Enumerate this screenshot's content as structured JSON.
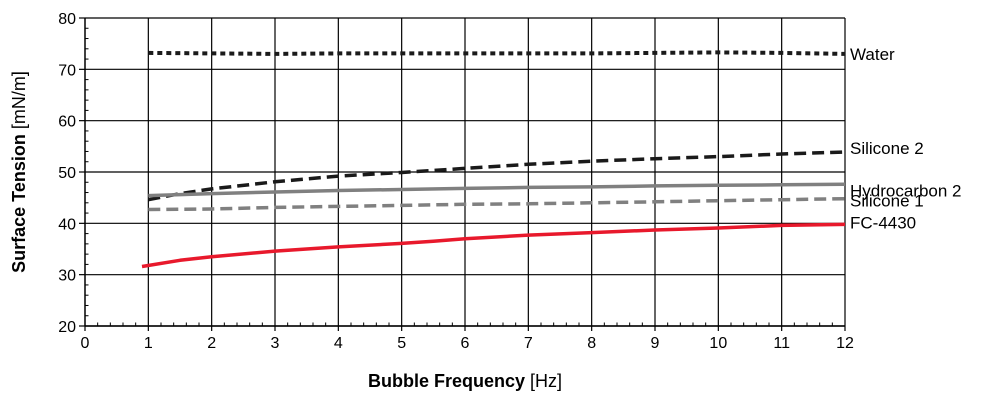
{
  "chart_data": {
    "type": "line",
    "xlabel_bold": "Bubble Frequency",
    "xlabel_unit": "[Hz]",
    "ylabel_bold": "Surface Tension",
    "ylabel_unit": "[mN/m]",
    "xlim": [
      0,
      12
    ],
    "ylim": [
      20,
      80
    ],
    "xticks": [
      0,
      1,
      2,
      3,
      4,
      5,
      6,
      7,
      8,
      9,
      10,
      11,
      12
    ],
    "yticks": [
      20,
      30,
      40,
      50,
      60,
      70,
      80
    ],
    "grid": true,
    "legend": "labels at right end of each line",
    "series": [
      {
        "name": "Water",
        "color": "#1a1a1a",
        "style": "dotted",
        "x": [
          1,
          2,
          3,
          4,
          5,
          6,
          7,
          8,
          9,
          10,
          11,
          12
        ],
        "y": [
          73.2,
          73.1,
          73.0,
          73.1,
          73.1,
          73.1,
          73.1,
          73.1,
          73.2,
          73.3,
          73.2,
          73.0
        ]
      },
      {
        "name": "Silicone 2",
        "color": "#1a1a1a",
        "style": "dashed",
        "x": [
          1,
          1.5,
          2,
          3,
          4,
          5,
          6,
          7,
          8,
          9,
          10,
          11,
          12
        ],
        "y": [
          44.6,
          45.8,
          46.7,
          48.1,
          49.2,
          49.9,
          50.7,
          51.5,
          52.1,
          52.6,
          53.0,
          53.5,
          53.9
        ]
      },
      {
        "name": "Hydrocarbon 2",
        "color": "#808080",
        "style": "solid",
        "x": [
          1,
          2,
          3,
          4,
          5,
          6,
          7,
          8,
          9,
          10,
          11,
          12
        ],
        "y": [
          45.4,
          45.8,
          46.1,
          46.4,
          46.6,
          46.8,
          47.0,
          47.1,
          47.3,
          47.4,
          47.5,
          47.6
        ]
      },
      {
        "name": "Silicone 1",
        "color": "#808080",
        "style": "dashed",
        "x": [
          1,
          2,
          3,
          4,
          5,
          6,
          7,
          8,
          9,
          10,
          11,
          12
        ],
        "y": [
          42.7,
          42.8,
          43.1,
          43.3,
          43.5,
          43.7,
          43.8,
          44.0,
          44.2,
          44.4,
          44.6,
          44.8
        ]
      },
      {
        "name": "FC-4430",
        "color": "#e8192c",
        "style": "solid",
        "x": [
          0.9,
          1.5,
          2,
          3,
          4,
          5,
          5.5,
          6,
          7,
          8,
          9,
          10,
          11,
          12
        ],
        "y": [
          31.6,
          32.8,
          33.5,
          34.6,
          35.4,
          36.1,
          36.5,
          37.0,
          37.7,
          38.2,
          38.7,
          39.1,
          39.6,
          39.8
        ]
      }
    ]
  }
}
